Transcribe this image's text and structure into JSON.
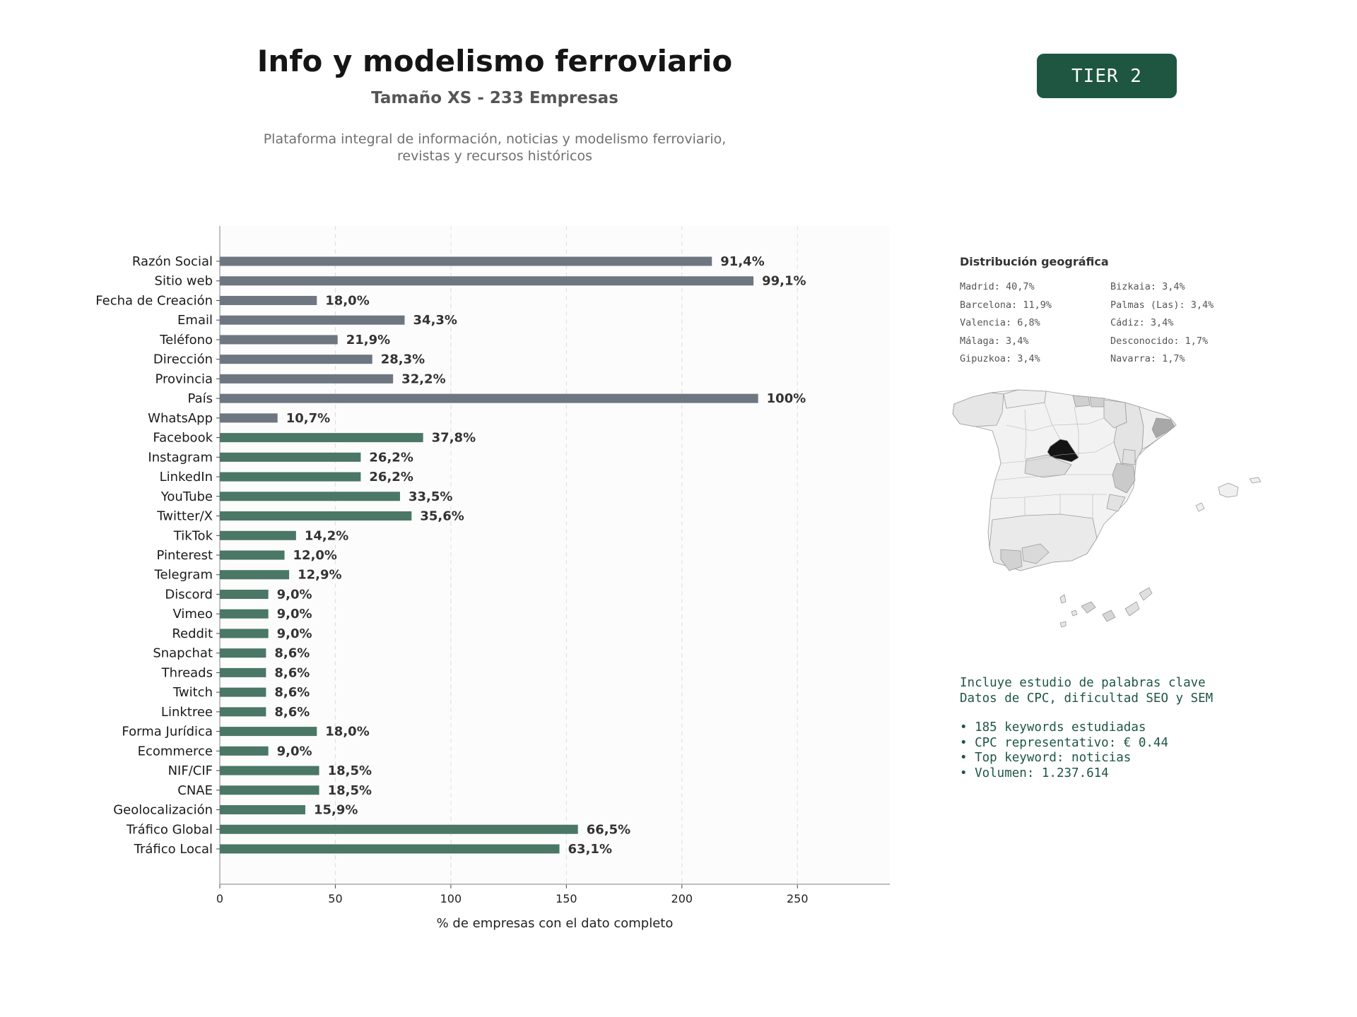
{
  "header": {
    "title": "Info y modelismo ferroviario",
    "subtitle": "Tamaño XS - 233 Empresas",
    "description_line1": "Plataforma integral de información, noticias y modelismo ferroviario,",
    "description_line2": "revistas y recursos históricos",
    "tier": "TIER 2"
  },
  "colors": {
    "accent": "#1e5641",
    "contact_bar": "#6e7781",
    "social_bar": "#4a7766",
    "plot_bg": "#fcfcfc"
  },
  "chart_data": {
    "type": "bar",
    "orientation": "horizontal",
    "xlabel": "% de empresas con el dato completo",
    "ylabel": "",
    "xlim": [
      0,
      290
    ],
    "xticks": [
      0,
      50,
      100,
      150,
      200,
      250
    ],
    "grid": "x, dashed",
    "categories": [
      "Razón Social",
      "Sitio web",
      "Fecha de Creación",
      "Email",
      "Teléfono",
      "Dirección",
      "Provincia",
      "País",
      "WhatsApp",
      "Facebook",
      "Instagram",
      "LinkedIn",
      "YouTube",
      "Twitter/X",
      "TikTok",
      "Pinterest",
      "Telegram",
      "Discord",
      "Vimeo",
      "Reddit",
      "Snapchat",
      "Threads",
      "Twitch",
      "Linktree",
      "Forma Jurídica",
      "Ecommerce",
      "NIF/CIF",
      "CNAE",
      "Geolocalización",
      "Tráfico Global",
      "Tráfico Local"
    ],
    "values": [
      213,
      231,
      42,
      80,
      51,
      66,
      75,
      233,
      25,
      88,
      61,
      61,
      78,
      83,
      33,
      28,
      30,
      21,
      21,
      21,
      20,
      20,
      20,
      20,
      42,
      21,
      43,
      43,
      37,
      155,
      147
    ],
    "labels": [
      "91,4%",
      "99,1%",
      "18,0%",
      "34,3%",
      "21,9%",
      "28,3%",
      "32,2%",
      "100%",
      "10,7%",
      "37,8%",
      "26,2%",
      "26,2%",
      "33,5%",
      "35,6%",
      "14,2%",
      "12,0%",
      "12,9%",
      "9,0%",
      "9,0%",
      "9,0%",
      "8,6%",
      "8,6%",
      "8,6%",
      "8,6%",
      "18,0%",
      "9,0%",
      "18,5%",
      "18,5%",
      "15,9%",
      "66,5%",
      "63,1%"
    ],
    "groups": [
      "contact",
      "contact",
      "contact",
      "contact",
      "contact",
      "contact",
      "contact",
      "contact",
      "contact",
      "social",
      "social",
      "social",
      "social",
      "social",
      "social",
      "social",
      "social",
      "social",
      "social",
      "social",
      "social",
      "social",
      "social",
      "social",
      "social",
      "social",
      "social",
      "social",
      "social",
      "social",
      "social"
    ]
  },
  "geo": {
    "title": "Distribución geográfica",
    "items": [
      "Madrid: 40,7%",
      "Bizkaia: 3,4%",
      "Barcelona: 11,9%",
      "Palmas (Las): 3,4%",
      "Valencia: 6,8%",
      "Cádiz: 3,4%",
      "Málaga: 3,4%",
      "Desconocido: 1,7%",
      "Gipuzkoa: 3,4%",
      "Navarra: 1,7%"
    ]
  },
  "keywords": {
    "line1": "Incluye estudio de palabras clave",
    "line2": "Datos de CPC, dificultad SEO y SEM",
    "bullets": [
      "• 185 keywords estudiadas",
      "• CPC representativo: € 0.44",
      "• Top keyword: noticias",
      "• Volumen: 1.237.614"
    ]
  }
}
